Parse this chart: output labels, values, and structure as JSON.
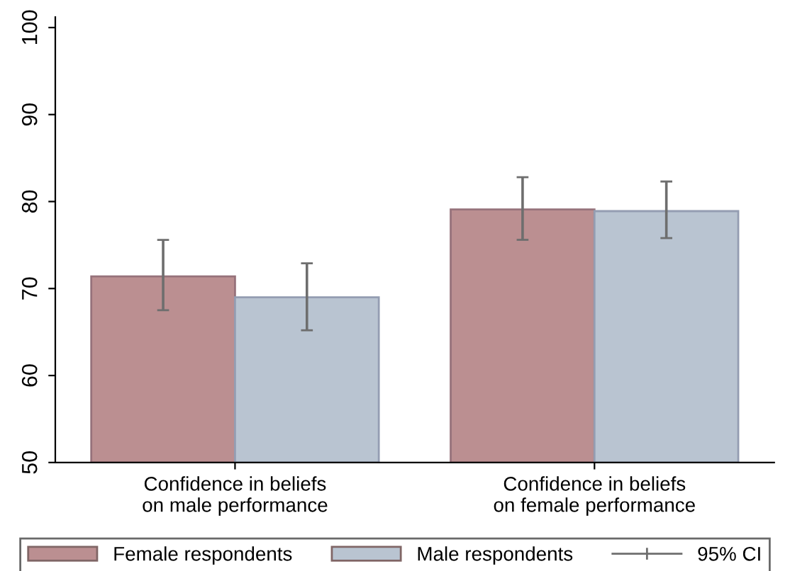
{
  "chart_data": {
    "type": "bar",
    "categories": [
      "Confidence in beliefs\non male performance",
      "Confidence in beliefs\non female performance"
    ],
    "series": [
      {
        "name": "Female respondents",
        "color": "#bb8f91",
        "values": [
          71.4,
          79.1
        ],
        "errors": [
          [
            67.5,
            75.6
          ],
          [
            75.6,
            82.8
          ]
        ]
      },
      {
        "name": "Male respondents",
        "color": "#b9c4d1",
        "values": [
          69.0,
          78.9
        ],
        "errors": [
          [
            65.2,
            72.9
          ],
          [
            75.8,
            82.3
          ]
        ]
      }
    ],
    "annotations": [
      "95% CI"
    ],
    "ylim": [
      50,
      101.2
    ],
    "yticks": [
      50,
      60,
      70,
      80,
      90,
      100
    ],
    "grid": false,
    "legend": "bottom"
  }
}
